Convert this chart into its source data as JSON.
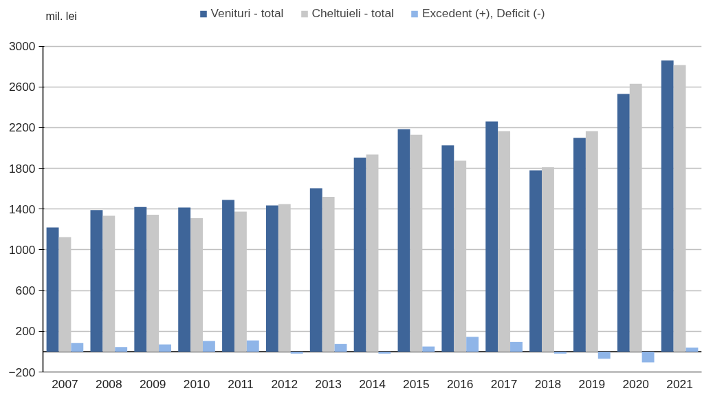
{
  "chart_data": {
    "type": "bar",
    "ylabel": "mil. lei",
    "categories": [
      "2007",
      "2008",
      "2009",
      "2010",
      "2011",
      "2012",
      "2013",
      "2014",
      "2015",
      "2016",
      "2017",
      "2018",
      "2019",
      "2020",
      "2021"
    ],
    "series": [
      {
        "name": "Venituri - total",
        "color": "#3e6599",
        "values": [
          1220,
          1390,
          1420,
          1415,
          1490,
          1435,
          1605,
          1905,
          2185,
          2025,
          2260,
          1780,
          2100,
          2530,
          2860
        ]
      },
      {
        "name": "Cheltuieli - total",
        "color": "#c8c8c8",
        "values": [
          1125,
          1335,
          1345,
          1310,
          1375,
          1450,
          1520,
          1935,
          2130,
          1875,
          2165,
          1810,
          2165,
          2630,
          2815
        ]
      },
      {
        "name": "Excedent (+), Deficit (-)",
        "color": "#8fb5e8",
        "values": [
          85,
          45,
          70,
          105,
          110,
          -20,
          75,
          -20,
          50,
          145,
          95,
          -20,
          -70,
          -105,
          40
        ]
      }
    ],
    "ylim": [
      -200,
      3000
    ],
    "yticks": [
      -200,
      200,
      600,
      1000,
      1400,
      1800,
      2200,
      2600,
      3000
    ],
    "grid": "y",
    "legend": "top"
  }
}
